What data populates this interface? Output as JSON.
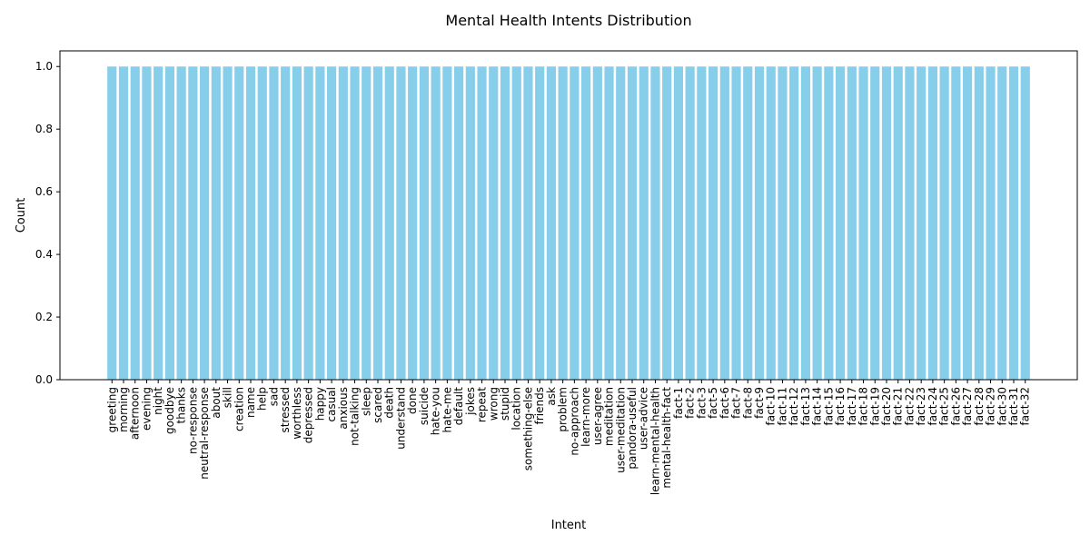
{
  "chart_data": {
    "type": "bar",
    "title": "Mental Health Intents Distribution",
    "xlabel": "Intent",
    "ylabel": "Count",
    "ylim": [
      0,
      1.05
    ],
    "yticks": [
      "0.0",
      "0.2",
      "0.4",
      "0.6",
      "0.8",
      "1.0"
    ],
    "grid": false,
    "bar_color": "#87CEEB",
    "categories": [
      "greeting",
      "morning",
      "afternoon",
      "evening",
      "night",
      "goodbye",
      "thanks",
      "no-response",
      "neutral-response",
      "about",
      "skill",
      "creation",
      "name",
      "help",
      "sad",
      "stressed",
      "worthless",
      "depressed",
      "happy",
      "casual",
      "anxious",
      "not-talking",
      "sleep",
      "scared",
      "death",
      "understand",
      "done",
      "suicide",
      "hate-you",
      "hate-me",
      "default",
      "jokes",
      "repeat",
      "wrong",
      "stupid",
      "location",
      "something-else",
      "friends",
      "ask",
      "problem",
      "no-approach",
      "learn-more",
      "user-agree",
      "meditation",
      "user-meditation",
      "pandora-useful",
      "user-advice",
      "learn-mental-health",
      "mental-health-fact",
      "fact-1",
      "fact-2",
      "fact-3",
      "fact-5",
      "fact-6",
      "fact-7",
      "fact-8",
      "fact-9",
      "fact-10",
      "fact-11",
      "fact-12",
      "fact-13",
      "fact-14",
      "fact-15",
      "fact-16",
      "fact-17",
      "fact-18",
      "fact-19",
      "fact-20",
      "fact-21",
      "fact-22",
      "fact-23",
      "fact-24",
      "fact-25",
      "fact-26",
      "fact-27",
      "fact-28",
      "fact-29",
      "fact-30",
      "fact-31",
      "fact-32"
    ],
    "values": [
      1,
      1,
      1,
      1,
      1,
      1,
      1,
      1,
      1,
      1,
      1,
      1,
      1,
      1,
      1,
      1,
      1,
      1,
      1,
      1,
      1,
      1,
      1,
      1,
      1,
      1,
      1,
      1,
      1,
      1,
      1,
      1,
      1,
      1,
      1,
      1,
      1,
      1,
      1,
      1,
      1,
      1,
      1,
      1,
      1,
      1,
      1,
      1,
      1,
      1,
      1,
      1,
      1,
      1,
      1,
      1,
      1,
      1,
      1,
      1,
      1,
      1,
      1,
      1,
      1,
      1,
      1,
      1,
      1,
      1,
      1,
      1,
      1,
      1,
      1,
      1,
      1,
      1,
      1,
      1
    ]
  }
}
